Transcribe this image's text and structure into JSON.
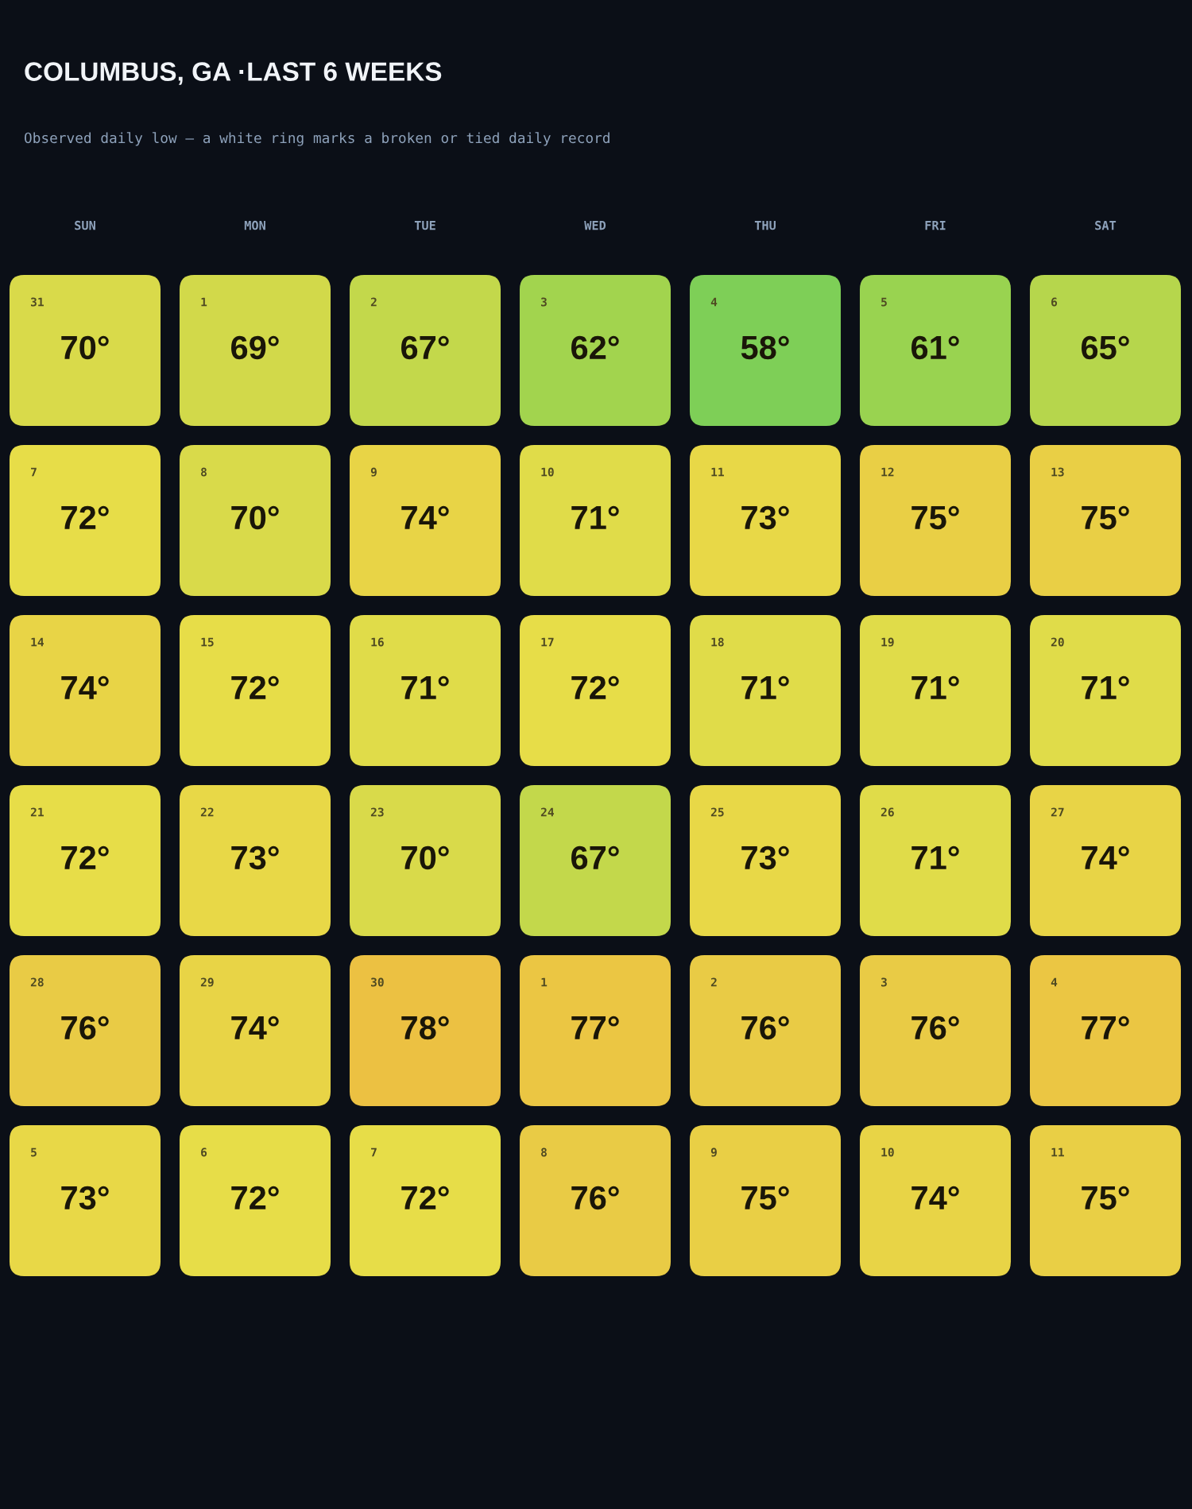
{
  "chart_data": {
    "type": "heatmap",
    "title": "COLUMBUS, GA ·LAST 6 WEEKS",
    "subtitle": "Observed daily low — a white ring marks a broken or tied daily record",
    "categories": [
      "SUN",
      "MON",
      "TUE",
      "WED",
      "THU",
      "FRI",
      "SAT"
    ],
    "y_categories": [
      null,
      null,
      null,
      null,
      null,
      null
    ],
    "cells": [
      [
        70,
        69,
        67,
        62,
        58,
        61,
        65
      ],
      [
        72,
        70,
        74,
        71,
        73,
        75,
        75
      ],
      [
        74,
        72,
        71,
        72,
        71,
        71,
        71
      ],
      [
        72,
        73,
        70,
        67,
        73,
        71,
        74
      ],
      [
        76,
        74,
        78,
        77,
        76,
        76,
        77
      ],
      [
        73,
        72,
        72,
        76,
        75,
        74,
        75
      ]
    ],
    "cell_labels": [
      [
        "70°",
        "69°",
        "67°",
        "62°",
        "58°",
        "61°",
        "65°"
      ],
      [
        "72°",
        "70°",
        "74°",
        "71°",
        "73°",
        "75°",
        "75°"
      ],
      [
        "74°",
        "72°",
        "71°",
        "72°",
        "71°",
        "71°",
        "71°"
      ],
      [
        "72°",
        "73°",
        "70°",
        "67°",
        "73°",
        "71°",
        "74°"
      ],
      [
        "76°",
        "74°",
        "78°",
        "77°",
        "76°",
        "76°",
        "77°"
      ],
      [
        "73°",
        "72°",
        "72°",
        "76°",
        "75°",
        "74°",
        "75°"
      ]
    ],
    "annotations": [
      "31",
      "1",
      "2",
      "3",
      "4",
      "5",
      "6",
      "7",
      "8",
      "9",
      "10",
      "11",
      "12",
      "13",
      "14",
      "15",
      "16",
      "17",
      "18",
      "19",
      "20",
      "21",
      "22",
      "23",
      "24",
      "25",
      "26",
      "27",
      "28",
      "29",
      "30",
      "1",
      "2",
      "3",
      "4",
      "5",
      "6",
      "7",
      "8",
      "9",
      "10",
      "11"
    ]
  }
}
